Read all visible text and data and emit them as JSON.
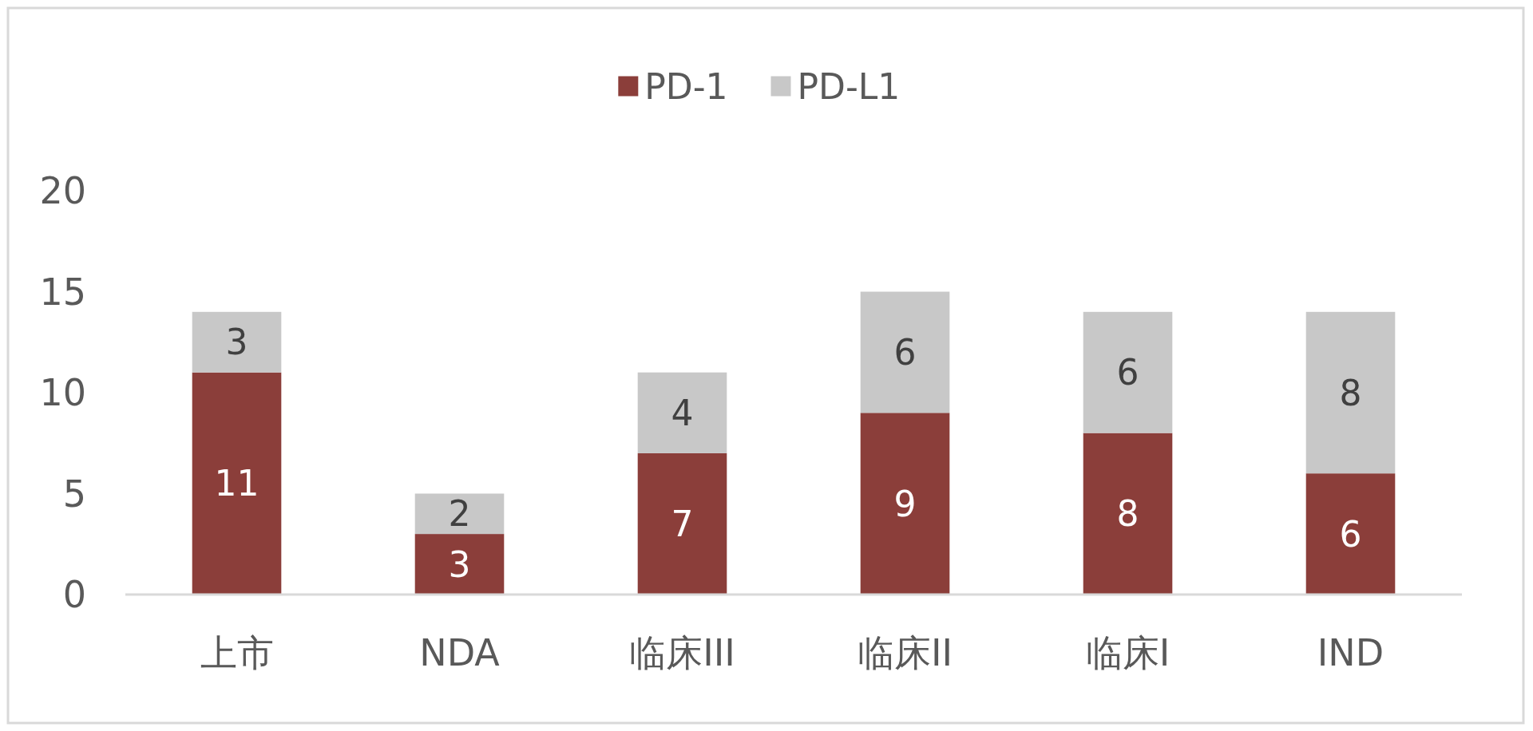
{
  "chart_data": {
    "type": "bar",
    "categories": [
      "上市",
      "NDA",
      "临床III",
      "临床II",
      "临床I",
      "IND"
    ],
    "series": [
      {
        "name": "PD-1",
        "color": "#8b3e3a",
        "values": [
          11,
          3,
          7,
          9,
          8,
          6
        ]
      },
      {
        "name": "PD-L1",
        "color": "#c8c8c8",
        "values": [
          3,
          2,
          4,
          6,
          6,
          8
        ]
      }
    ],
    "stacked": true,
    "ylim": [
      0,
      20
    ],
    "yticks": [
      0,
      5,
      10,
      15,
      20
    ],
    "legend": "top",
    "data_labels": true
  }
}
